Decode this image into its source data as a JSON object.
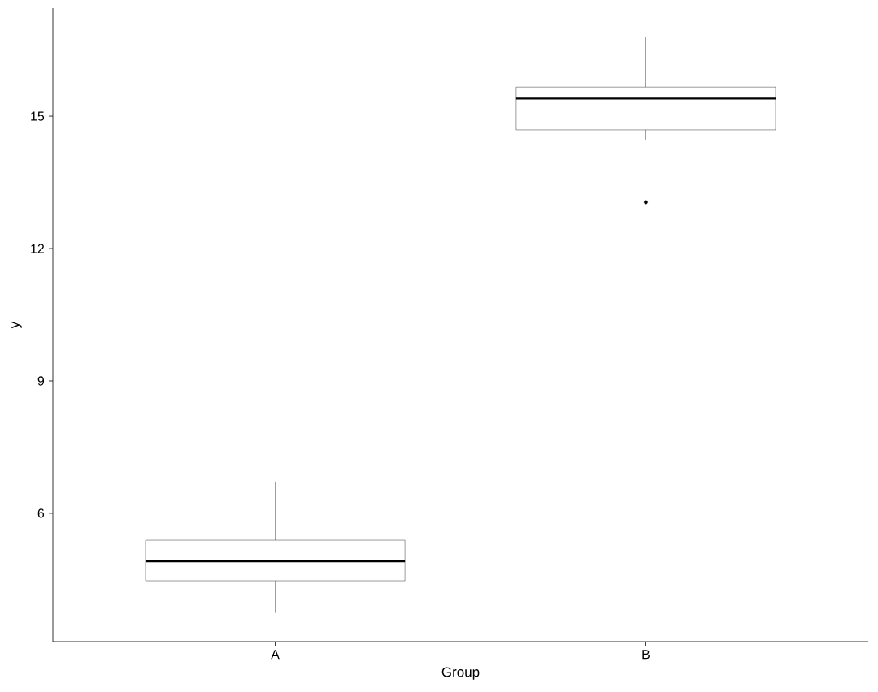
{
  "chart_data": {
    "type": "box",
    "xlabel": "Group",
    "ylabel": "y",
    "categories": [
      "A",
      "B"
    ],
    "boxes": [
      {
        "low": 3.74,
        "q1": 4.47,
        "median": 4.91,
        "q3": 5.39,
        "high": 6.72
      },
      {
        "low": 14.47,
        "q1": 14.69,
        "median": 15.4,
        "q3": 15.66,
        "high": 16.8,
        "outliers": [
          13.05
        ]
      }
    ],
    "ylim": [
      3.09,
      17.45
    ],
    "yticks": [
      6,
      9,
      12,
      15
    ]
  }
}
